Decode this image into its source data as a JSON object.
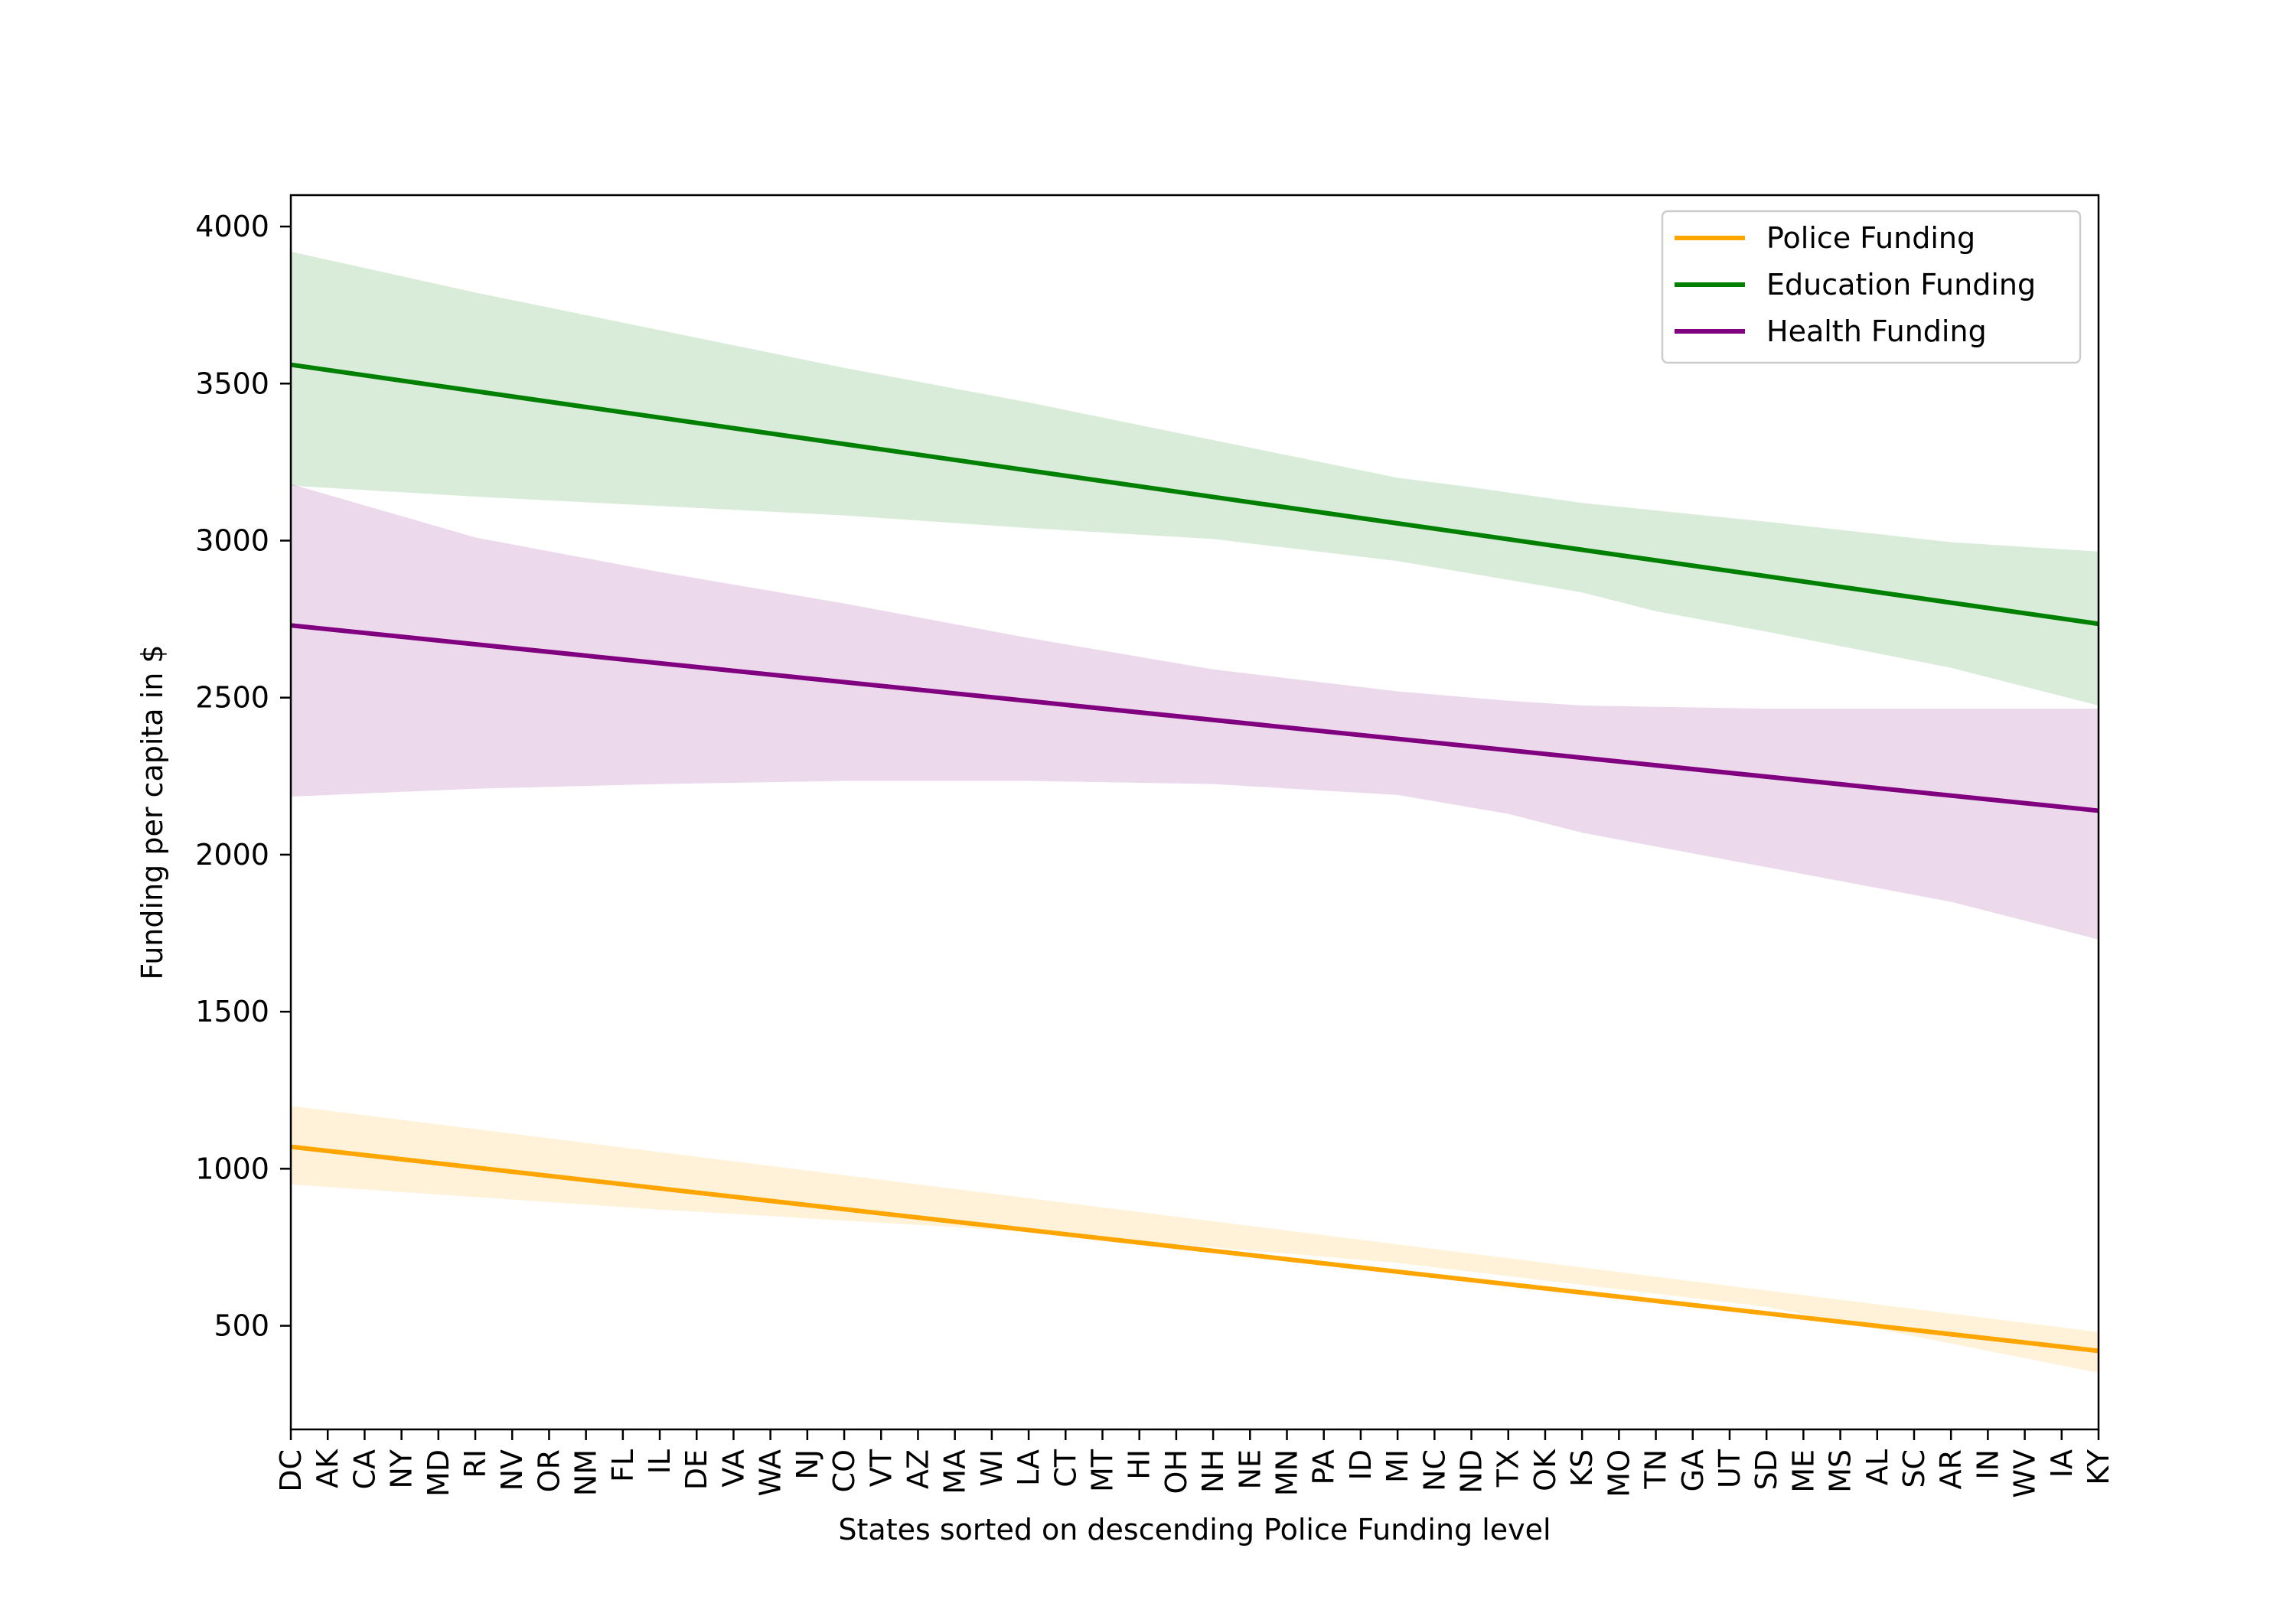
{
  "chart_data": {
    "type": "line",
    "xlabel": "States sorted on descending Police Funding level",
    "ylabel": "Funding per capita in $",
    "categories": [
      "DC",
      "AK",
      "CA",
      "NY",
      "MD",
      "RI",
      "NV",
      "OR",
      "NM",
      "FL",
      "IL",
      "DE",
      "VA",
      "WA",
      "NJ",
      "CO",
      "VT",
      "AZ",
      "MA",
      "WI",
      "LA",
      "CT",
      "MT",
      "HI",
      "OH",
      "NH",
      "NE",
      "MN",
      "PA",
      "ID",
      "MI",
      "NC",
      "ND",
      "TX",
      "OK",
      "KS",
      "MO",
      "TN",
      "GA",
      "UT",
      "SD",
      "ME",
      "MS",
      "AL",
      "SC",
      "AR",
      "IN",
      "WV",
      "IA",
      "KY"
    ],
    "ylim": [
      170,
      4100
    ],
    "yticks": [
      500,
      1000,
      1500,
      2000,
      2500,
      3000,
      3500,
      4000
    ],
    "grid": false,
    "legend_position": "top-right",
    "series": [
      {
        "name": "Police Funding",
        "color": "#ffa500",
        "band_color": "#ffa500",
        "start": 1070,
        "end": 420,
        "band_upper": [
          [
            0,
            1200
          ],
          [
            49,
            480
          ]
        ],
        "band_lower": [
          [
            0,
            950
          ],
          [
            10,
            870
          ],
          [
            20,
            800
          ],
          [
            30,
            700
          ],
          [
            40,
            560
          ],
          [
            49,
            350
          ]
        ]
      },
      {
        "name": "Education Funding",
        "color": "#008000",
        "band_color": "#008000",
        "start": 3560,
        "end": 2735,
        "band_upper": [
          [
            0,
            3920
          ],
          [
            5,
            3790
          ],
          [
            10,
            3670
          ],
          [
            15,
            3550
          ],
          [
            20,
            3440
          ],
          [
            25,
            3320
          ],
          [
            30,
            3200
          ],
          [
            32,
            3170
          ],
          [
            35,
            3120
          ],
          [
            40,
            3060
          ],
          [
            45,
            2995
          ],
          [
            49,
            2965
          ]
        ],
        "band_lower": [
          [
            0,
            3175
          ],
          [
            5,
            3140
          ],
          [
            10,
            3110
          ],
          [
            15,
            3080
          ],
          [
            20,
            3040
          ],
          [
            25,
            3005
          ],
          [
            30,
            2935
          ],
          [
            35,
            2835
          ],
          [
            37,
            2775
          ],
          [
            40,
            2710
          ],
          [
            45,
            2595
          ],
          [
            49,
            2475
          ]
        ]
      },
      {
        "name": "Health Funding",
        "color": "#800080",
        "band_color": "#800080",
        "start": 2730,
        "end": 2140,
        "band_upper": [
          [
            0,
            3180
          ],
          [
            5,
            3010
          ],
          [
            10,
            2900
          ],
          [
            15,
            2800
          ],
          [
            20,
            2690
          ],
          [
            25,
            2590
          ],
          [
            30,
            2520
          ],
          [
            33,
            2490
          ],
          [
            35,
            2475
          ],
          [
            40,
            2465
          ],
          [
            45,
            2465
          ],
          [
            49,
            2465
          ]
        ],
        "band_lower": [
          [
            0,
            2185
          ],
          [
            5,
            2210
          ],
          [
            10,
            2225
          ],
          [
            15,
            2235
          ],
          [
            20,
            2235
          ],
          [
            25,
            2225
          ],
          [
            30,
            2190
          ],
          [
            33,
            2130
          ],
          [
            35,
            2070
          ],
          [
            40,
            1960
          ],
          [
            45,
            1850
          ],
          [
            49,
            1730
          ]
        ]
      }
    ]
  }
}
